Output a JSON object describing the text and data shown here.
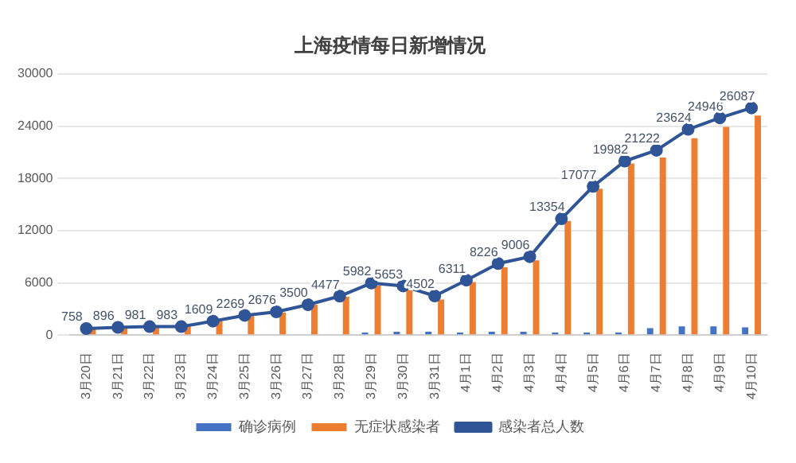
{
  "chart_data": {
    "type": "bar",
    "title": "上海疫情每日新增情况",
    "categories": [
      "3月20日",
      "3月21日",
      "3月22日",
      "3月23日",
      "3月24日",
      "3月25日",
      "3月26日",
      "3月27日",
      "3月28日",
      "3月29日",
      "3月30日",
      "3月31日",
      "4月1日",
      "4月2日",
      "4月3日",
      "4月4日",
      "4月5日",
      "4月6日",
      "4月7日",
      "4月8日",
      "4月9日",
      "4月10日"
    ],
    "series": [
      {
        "name": "确诊病例",
        "color": "#4472c4",
        "values": [
          0,
          0,
          0,
          0,
          0,
          0,
          0,
          0,
          100,
          300,
          400,
          400,
          300,
          400,
          400,
          300,
          300,
          300,
          800,
          1000,
          1000,
          900
        ]
      },
      {
        "name": "无症状感染者",
        "color": "#ed7d31",
        "values": [
          700,
          900,
          1000,
          1000,
          1600,
          2200,
          2600,
          3500,
          4400,
          5700,
          5300,
          4100,
          6100,
          7800,
          8600,
          13100,
          16800,
          19700,
          20400,
          22600,
          23900,
          25200
        ]
      },
      {
        "name": "感染者总人数",
        "type": "line",
        "color": "#2f5597",
        "values": [
          758,
          896,
          981,
          983,
          1609,
          2269,
          2676,
          3500,
          4477,
          5982,
          5653,
          4502,
          6311,
          8226,
          9006,
          13354,
          17077,
          19982,
          21222,
          23624,
          24946,
          26087
        ],
        "value_labels": [
          "758",
          "896",
          "981",
          "983",
          "1609",
          "2269",
          "2676",
          "3500",
          "4477",
          "5982",
          "5653",
          "4502",
          "6311",
          "8226",
          "9006",
          "13354",
          "17077",
          "19982",
          "21222",
          "23624",
          "24946",
          "26087"
        ]
      }
    ],
    "ylim": [
      0,
      30000
    ],
    "yticks": [
      0,
      6000,
      12000,
      18000,
      24000,
      30000
    ],
    "grid": "y",
    "legend": "bottom",
    "marker": "circle"
  }
}
